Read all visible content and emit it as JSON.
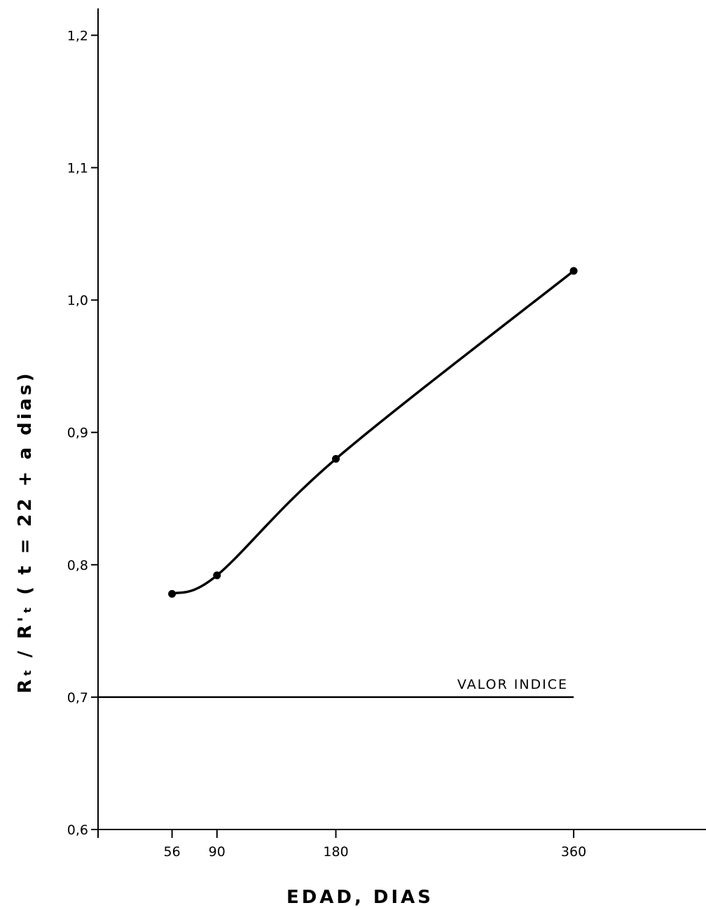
{
  "chart_data": {
    "type": "line",
    "title": "",
    "xlabel": "EDAD, DIAS",
    "ylabel": "Rₜ / R'ₜ  ( t = 22 + a dias)",
    "x_ticks": [
      56,
      90,
      180,
      360
    ],
    "x_tick_labels": [
      "56",
      "90",
      "180",
      "360"
    ],
    "y_ticks": [
      0.6,
      0.7,
      0.8,
      0.9,
      1.0,
      1.1,
      1.2
    ],
    "y_tick_labels": [
      "0,6",
      "0,7",
      "0,8",
      "0,9",
      "1,0",
      "1,1",
      "1,2"
    ],
    "xlim": [
      0,
      540
    ],
    "ylim": [
      0.6,
      1.22
    ],
    "grid": false,
    "legend": "none",
    "series": [
      {
        "x": [
          56,
          90,
          180,
          360
        ],
        "y": [
          0.778,
          0.792,
          0.88,
          1.022
        ],
        "markers": true,
        "curve": "smooth"
      }
    ],
    "reference_line": {
      "y": 0.7,
      "x_start": 0,
      "x_end": 360,
      "label": "VALOR INDICE"
    },
    "line_color": "#000000"
  }
}
